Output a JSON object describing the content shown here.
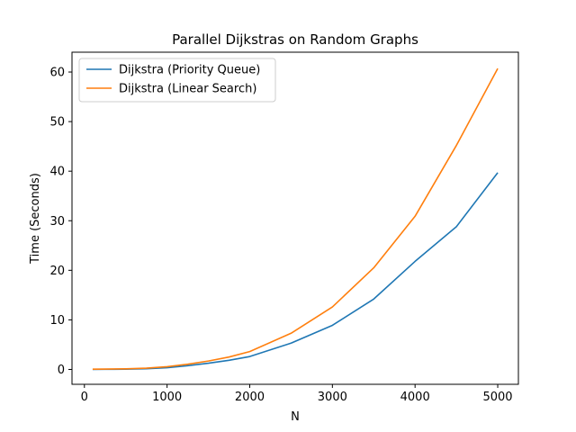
{
  "chart_data": {
    "type": "line",
    "title": "Parallel Dijkstras on Random Graphs",
    "xlabel": "N",
    "ylabel": "Time (Seconds)",
    "xlim": [
      -150,
      5250
    ],
    "ylim": [
      -3,
      64
    ],
    "xticks": [
      0,
      1000,
      2000,
      3000,
      4000,
      5000
    ],
    "yticks": [
      0,
      10,
      20,
      30,
      40,
      50,
      60
    ],
    "grid": false,
    "legend_position": "upper-left",
    "series": [
      {
        "name": "Dijkstra (Priority Queue)",
        "color": "#1f77b4",
        "x": [
          100,
          250,
          500,
          750,
          1000,
          1250,
          1500,
          1750,
          2000,
          2500,
          3000,
          3500,
          4000,
          4500,
          5000
        ],
        "y": [
          0.0,
          0.02,
          0.05,
          0.15,
          0.35,
          0.75,
          1.25,
          1.85,
          2.6,
          5.3,
          8.9,
          14.2,
          21.8,
          28.8,
          39.7
        ]
      },
      {
        "name": "Dijkstra (Linear Search)",
        "color": "#ff7f0e",
        "x": [
          100,
          250,
          500,
          750,
          1000,
          1250,
          1500,
          1750,
          2000,
          2500,
          3000,
          3500,
          4000,
          4500,
          5000
        ],
        "y": [
          0.05,
          0.08,
          0.12,
          0.25,
          0.55,
          1.05,
          1.7,
          2.5,
          3.6,
          7.3,
          12.6,
          20.5,
          30.9,
          45.2,
          60.7
        ]
      }
    ]
  }
}
